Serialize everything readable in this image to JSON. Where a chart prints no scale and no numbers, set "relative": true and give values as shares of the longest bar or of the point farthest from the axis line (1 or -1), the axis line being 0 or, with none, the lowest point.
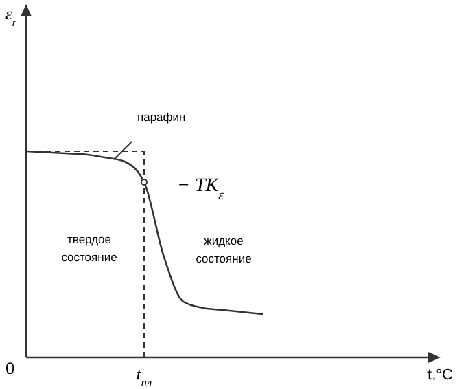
{
  "chart_data": {
    "type": "line",
    "relative": true,
    "categories": [
      null,
      null,
      null,
      null,
      null,
      null,
      null,
      null,
      null,
      null,
      null,
      null,
      null
    ],
    "series": [
      {
        "color": "#333333",
        "values": [
          1,
          0.995,
          0.99,
          0.985,
          0.97,
          0.95,
          0.85,
          0.49,
          0.27,
          0.24,
          0.23,
          0.22,
          0.21
        ]
      }
    ],
    "ref_lines": [
      {
        "axis": "y",
        "value": 1,
        "line_style": "dashed"
      }
    ],
    "annotations": [
      "0",
      "парафин",
      "− TK$_{ε}$",
      "твердое состояние",
      "жидкое состояние",
      "t$_{пл}$",
      "ε$_{r}$",
      "t,°C"
    ],
    "marker": "none",
    "line_style": "solid",
    "grid": false
  }
}
